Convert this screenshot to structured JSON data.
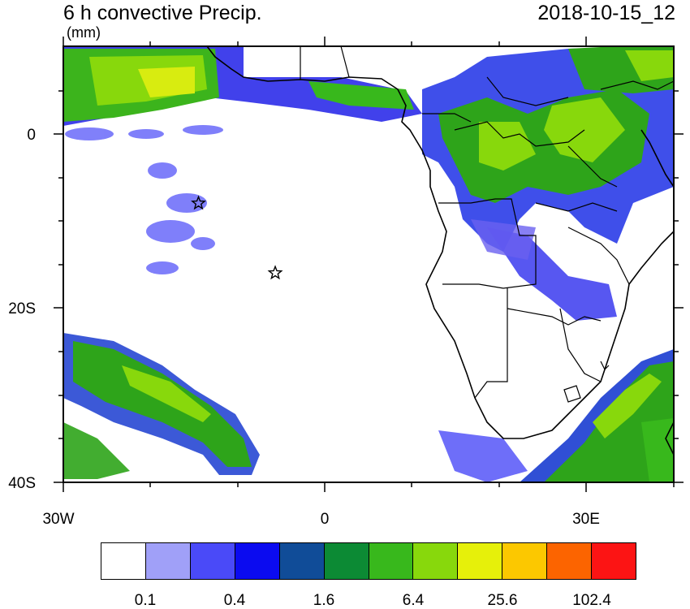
{
  "title": "6 h convective Precip.",
  "datetime": "2018-10-15_12",
  "units": "(mm)",
  "lat_labels": [
    "0",
    "20S",
    "40S"
  ],
  "lon_labels": [
    "30W",
    "0",
    "30E"
  ],
  "colorbar": {
    "colors": [
      "#ffffff",
      "#a0a0f8",
      "#4a4af8",
      "#0b0bf0",
      "#104c98",
      "#0c8a34",
      "#38b81c",
      "#88d80c",
      "#e6f00a",
      "#fcc800",
      "#fc6400",
      "#fc1414"
    ],
    "labels": [
      "0.1",
      "0.4",
      "1.6",
      "6.4",
      "25.6",
      "102.4"
    ]
  },
  "markers": [
    {
      "name": "star-marker-1",
      "lon": -14.5,
      "lat": -8
    },
    {
      "name": "star-marker-2",
      "lon": -5.7,
      "lat": -16
    }
  ]
}
